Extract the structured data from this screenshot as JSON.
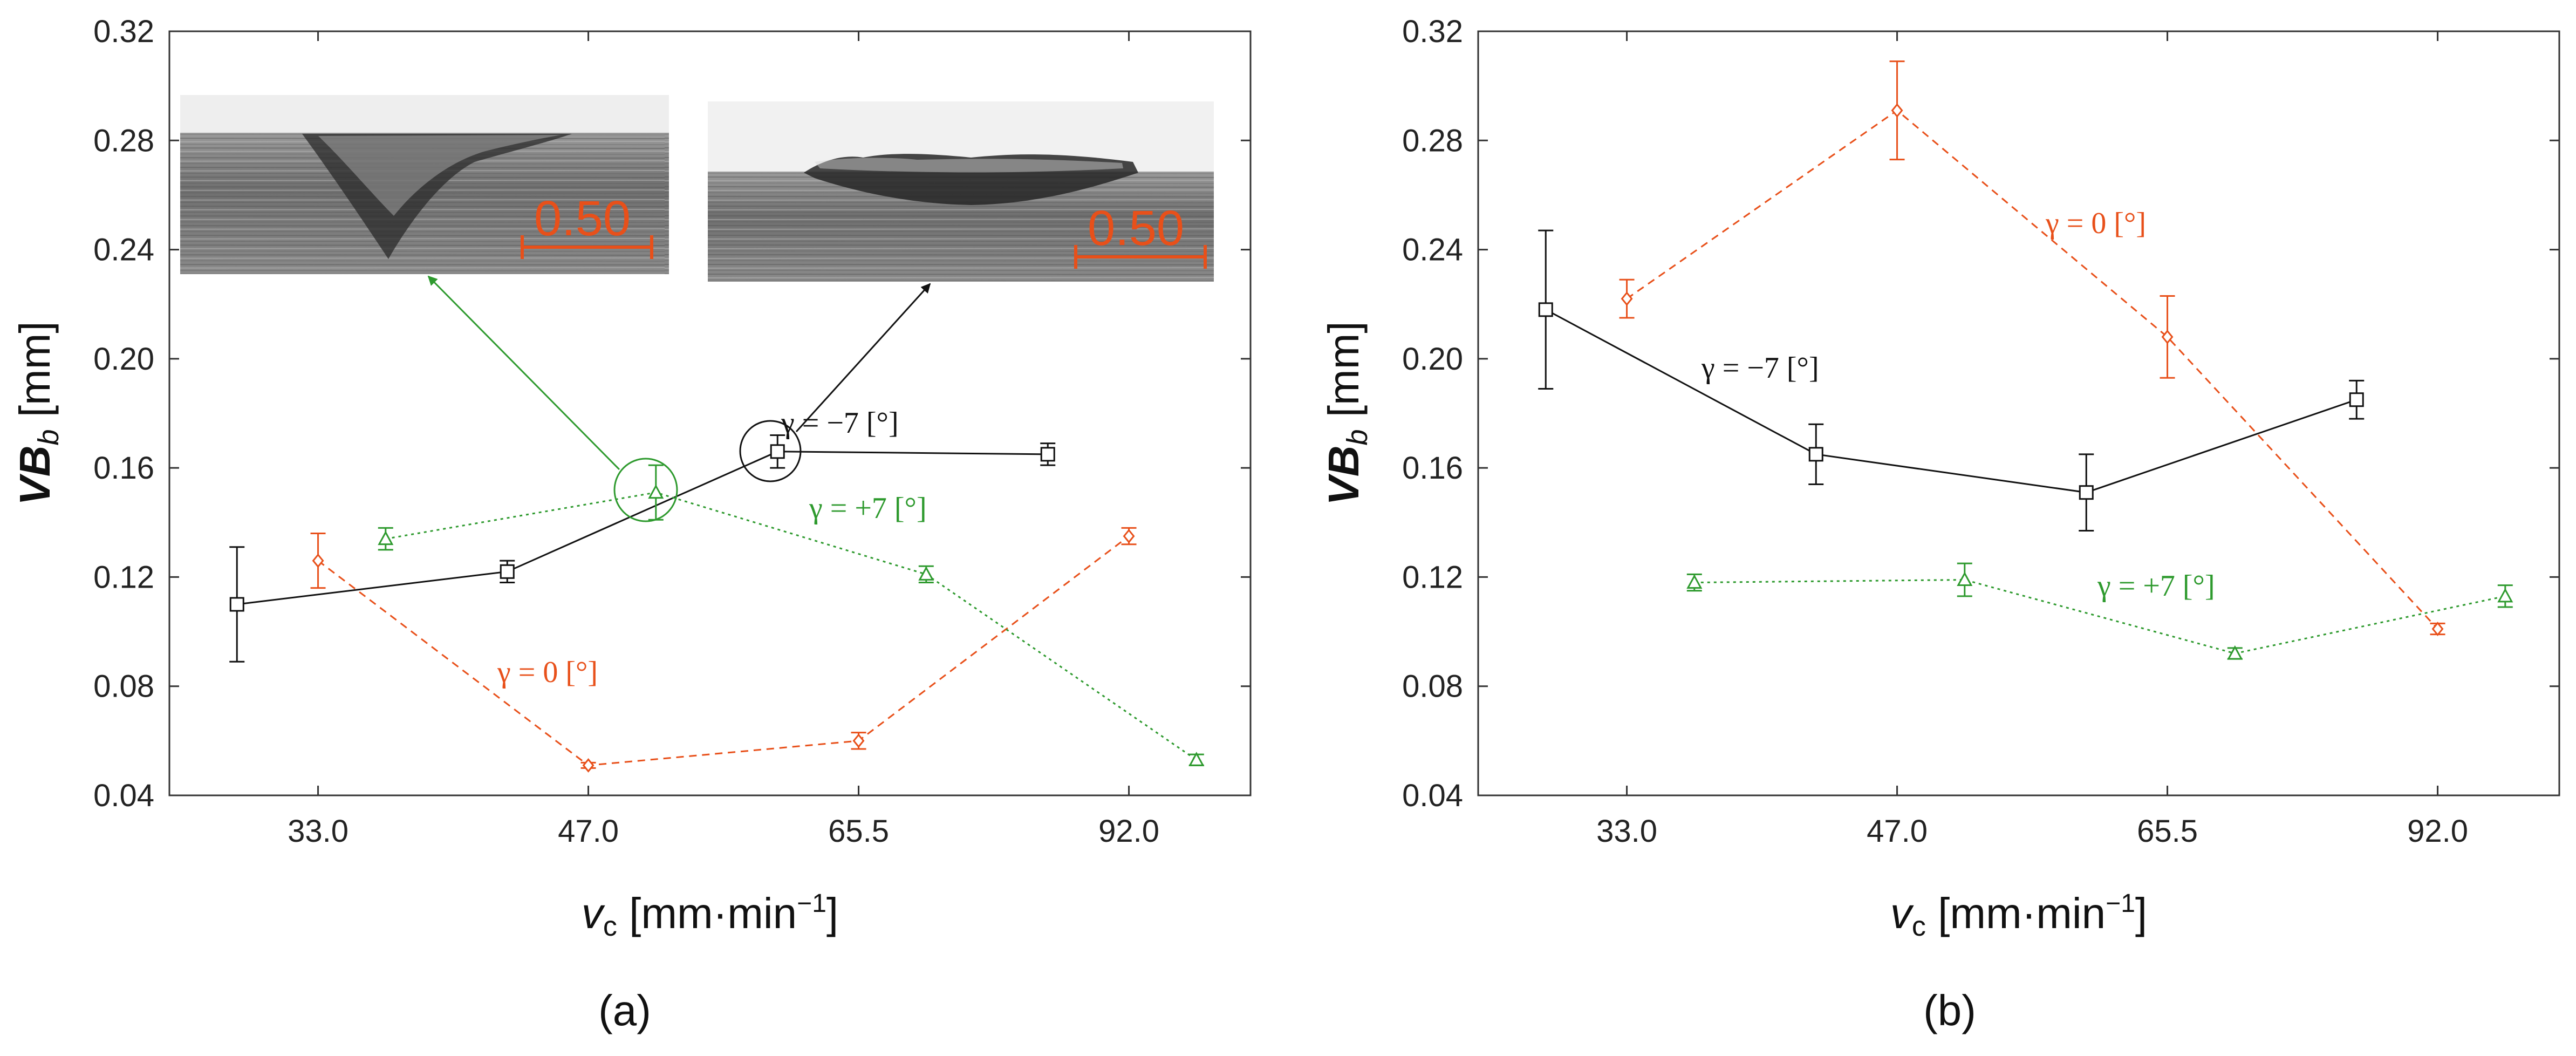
{
  "chart_data": [
    {
      "type": "line",
      "panel_label": "(a)",
      "xlabel": "v",
      "xlabel_sub": "c",
      "xlabel_unit": " [mm·min",
      "xlabel_sup": "−1",
      "xlabel_close": "]",
      "ylabel": "VB",
      "ylabel_sub": "b",
      "ylabel_unit": " [mm]",
      "categories": [
        "33.0",
        "47.0",
        "65.5",
        "92.0"
      ],
      "ylim": [
        0.04,
        0.32
      ],
      "yticks": [
        "0.04",
        "0.08",
        "0.12",
        "0.16",
        "0.20",
        "0.24",
        "0.28",
        "0.32"
      ],
      "grid": false,
      "series": [
        {
          "name": "γ = −7 [°]",
          "color": "#111111",
          "marker": "square",
          "dash": "solid",
          "x": [
            0.7,
            1.7,
            2.7,
            3.7
          ],
          "y": [
            0.11,
            0.122,
            0.166,
            0.165
          ],
          "err": [
            0.021,
            0.004,
            0.006,
            0.004
          ]
        },
        {
          "name": "γ = 0 [°]",
          "color": "#e8501a",
          "marker": "diamond",
          "dash": "dashed",
          "x": [
            1.0,
            2.0,
            3.0,
            4.0
          ],
          "y": [
            0.126,
            0.051,
            0.06,
            0.135
          ],
          "err": [
            0.01,
            0.001,
            0.003,
            0.003
          ]
        },
        {
          "name": "γ = +7 [°]",
          "color": "#2e9a2e",
          "marker": "triangle",
          "dash": "dotted",
          "x": [
            1.25,
            2.25,
            3.25,
            4.25
          ],
          "y": [
            0.134,
            0.151,
            0.121,
            0.053
          ],
          "err": [
            0.004,
            0.01,
            0.003,
            0.002
          ]
        }
      ],
      "insets": [
        {
          "scale_label": "0.50"
        },
        {
          "scale_label": "0.50"
        }
      ]
    },
    {
      "type": "line",
      "panel_label": "(b)",
      "xlabel": "v",
      "xlabel_sub": "c",
      "xlabel_unit": " [mm·min",
      "xlabel_sup": "−1",
      "xlabel_close": "]",
      "ylabel": "VB",
      "ylabel_sub": "b",
      "ylabel_unit": " [mm]",
      "categories": [
        "33.0",
        "47.0",
        "65.5",
        "92.0"
      ],
      "ylim": [
        0.04,
        0.32
      ],
      "yticks": [
        "0.04",
        "0.08",
        "0.12",
        "0.16",
        "0.20",
        "0.24",
        "0.28",
        "0.32"
      ],
      "grid": false,
      "series": [
        {
          "name": "γ = −7 [°]",
          "color": "#111111",
          "marker": "square",
          "dash": "solid",
          "x": [
            0.7,
            1.7,
            2.7,
            3.7
          ],
          "y": [
            0.218,
            0.165,
            0.151,
            0.185
          ],
          "err": [
            0.029,
            0.011,
            0.014,
            0.007
          ]
        },
        {
          "name": "γ = 0 [°]",
          "color": "#e8501a",
          "marker": "diamond",
          "dash": "dashed",
          "x": [
            1.0,
            2.0,
            3.0,
            4.0
          ],
          "y": [
            0.222,
            0.291,
            0.208,
            0.101
          ],
          "err": [
            0.007,
            0.018,
            0.015,
            0.002
          ]
        },
        {
          "name": "γ = +7 [°]",
          "color": "#2e9a2e",
          "marker": "triangle",
          "dash": "dotted",
          "x": [
            1.25,
            2.25,
            3.25,
            4.25
          ],
          "y": [
            0.118,
            0.119,
            0.092,
            0.113
          ],
          "err": [
            0.003,
            0.006,
            0.002,
            0.004
          ]
        }
      ]
    }
  ]
}
